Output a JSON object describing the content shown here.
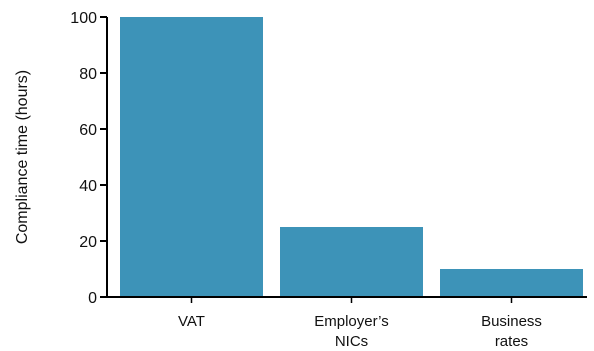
{
  "chart_data": {
    "type": "bar",
    "title": "",
    "xlabel": "",
    "ylabel": "Compliance time (hours)",
    "ylim": [
      0,
      100
    ],
    "yticks": [
      0,
      20,
      40,
      60,
      80,
      100
    ],
    "grid": false,
    "categories": [
      [
        "VAT"
      ],
      [
        "Employer’s",
        "NICs"
      ],
      [
        "Business",
        "rates"
      ]
    ],
    "values": [
      100,
      25,
      10
    ],
    "bar_color": "#3d93b8",
    "axis_color": "#000000"
  }
}
